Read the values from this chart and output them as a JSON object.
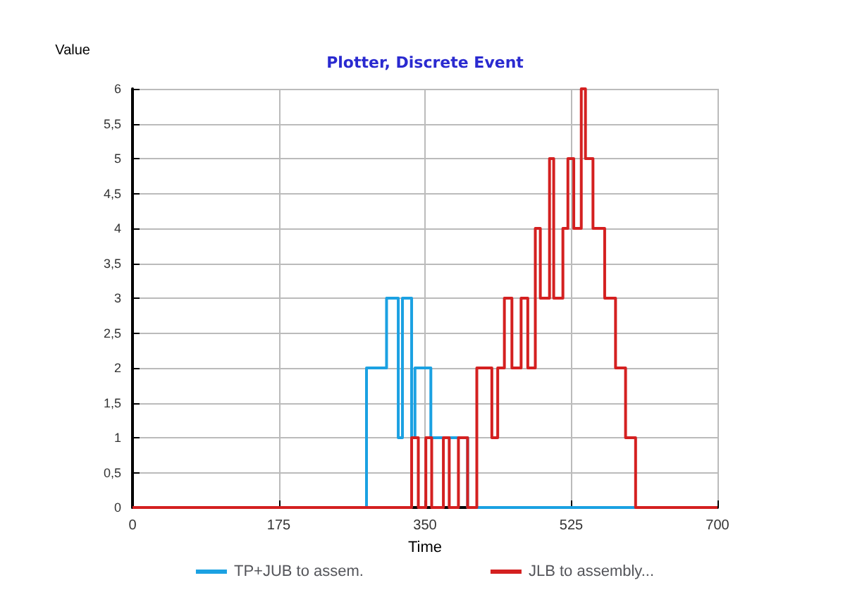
{
  "chart_data": {
    "type": "step",
    "title": "Plotter, Discrete Event",
    "xlabel": "Time",
    "ylabel": "Value",
    "series": [
      {
        "name": "TP+JUB to assem.",
        "color": "#1ba1e2",
        "x": [
          0,
          280,
          304,
          318,
          323,
          334,
          338,
          357,
          401,
          700
        ],
        "values": [
          0,
          2,
          3,
          1,
          3,
          1,
          2,
          1,
          0,
          0
        ]
      },
      {
        "name": "JLB to assembly...",
        "color": "#d42020",
        "x": [
          0,
          334,
          342,
          351,
          358,
          372,
          379,
          390,
          401,
          412,
          430,
          437,
          445,
          454,
          465,
          473,
          482,
          488,
          499,
          504,
          515,
          521,
          528,
          537,
          542,
          551,
          565,
          578,
          590,
          602,
          700
        ],
        "values": [
          0,
          1,
          0,
          1,
          0,
          1,
          0,
          1,
          0,
          2,
          1,
          2,
          3,
          2,
          3,
          2,
          4,
          3,
          5,
          3,
          4,
          5,
          4,
          6,
          5,
          4,
          3,
          2,
          1,
          0,
          0
        ]
      }
    ],
    "xlim": [
      0,
      700
    ],
    "xticks": [
      0,
      175,
      350,
      525,
      700
    ],
    "ylim": [
      0,
      6
    ],
    "yticks": [
      0,
      {
        "value": 0.5,
        "label": "0,5"
      },
      1,
      {
        "value": 1.5,
        "label": "1,5"
      },
      2,
      {
        "value": 2.5,
        "label": "2,5"
      },
      3,
      {
        "value": 3.5,
        "label": "3,5"
      },
      4,
      {
        "value": 4.5,
        "label": "4,5"
      },
      5,
      {
        "value": 5.5,
        "label": "5,5"
      },
      6
    ],
    "grid": true,
    "legend": "bottom",
    "line_style": "solid",
    "marker": "none"
  }
}
